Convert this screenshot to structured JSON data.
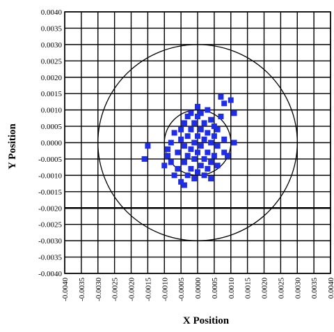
{
  "chart_data": {
    "type": "scatter",
    "title": "",
    "xlabel": "X Position",
    "ylabel": "Y Position",
    "xlim": [
      -0.004,
      0.004
    ],
    "ylim": [
      -0.004,
      0.004
    ],
    "x_ticks": [
      "-0.0040",
      "-0.0035",
      "-0.0030",
      "-0.0025",
      "-0.0020",
      "-0.0015",
      "-0.0010",
      "-0.0005",
      "0.0000",
      "0.0005",
      "0.0010",
      "0.0015",
      "0.0020",
      "0.0025",
      "0.0030",
      "0.0035",
      "0.0040"
    ],
    "y_ticks": [
      "0.0040",
      "0.0035",
      "0.0030",
      "0.0025",
      "0.0020",
      "0.0015",
      "0.0010",
      "0.0005",
      "0.0000",
      "-0.0005",
      "-0.0010",
      "-0.0015",
      "-0.0020",
      "-0.0025",
      "-0.0030",
      "-0.0035",
      "-0.0040"
    ],
    "grid": true,
    "marker_color": "#1f2ee6",
    "circles": [
      {
        "cx": 0.0,
        "cy": 0.0,
        "r": 0.003
      },
      {
        "cx": 0.0,
        "cy": 0.0,
        "r": 0.001
      }
    ],
    "series": [
      {
        "points": [
          [
            -0.0016,
            -0.0005
          ],
          [
            -0.0015,
            -0.0001
          ],
          [
            -0.001,
            -0.0007
          ],
          [
            -0.0009,
            -0.0004
          ],
          [
            -0.0009,
            -0.0002
          ],
          [
            -0.0008,
            0.0
          ],
          [
            -0.0008,
            -0.0006
          ],
          [
            -0.0007,
            -0.001
          ],
          [
            -0.0007,
            0.0003
          ],
          [
            -0.0006,
            -0.0008
          ],
          [
            -0.0006,
            -0.0003
          ],
          [
            -0.0005,
            -0.0012
          ],
          [
            -0.0005,
            0.0001
          ],
          [
            -0.0005,
            0.0004
          ],
          [
            -0.0004,
            -0.0013
          ],
          [
            -0.0004,
            -0.0006
          ],
          [
            -0.0004,
            -0.0001
          ],
          [
            -0.0004,
            0.0006
          ],
          [
            -0.0003,
            -0.001
          ],
          [
            -0.0003,
            -0.0004
          ],
          [
            -0.0003,
            0.0002
          ],
          [
            -0.0003,
            0.0008
          ],
          [
            -0.0002,
            -0.0008
          ],
          [
            -0.0002,
            -0.0002
          ],
          [
            -0.0002,
            0.0004
          ],
          [
            -0.0002,
            0.0009
          ],
          [
            -0.0001,
            -0.0011
          ],
          [
            -0.0001,
            -0.0005
          ],
          [
            -0.0001,
            0.0
          ],
          [
            -0.0001,
            0.0006
          ],
          [
            0.0,
            -0.0009
          ],
          [
            0.0,
            -0.0003
          ],
          [
            0.0,
            0.0002
          ],
          [
            0.0,
            0.0008
          ],
          [
            0.0,
            0.0011
          ],
          [
            0.0001,
            -0.0007
          ],
          [
            0.0001,
            -0.0001
          ],
          [
            0.0001,
            0.0004
          ],
          [
            0.0001,
            0.0009
          ],
          [
            0.0002,
            -0.001
          ],
          [
            0.0002,
            -0.0005
          ],
          [
            0.0002,
            0.0001
          ],
          [
            0.0002,
            0.0006
          ],
          [
            0.0003,
            -0.0008
          ],
          [
            0.0003,
            -0.0003
          ],
          [
            0.0003,
            0.0003
          ],
          [
            0.0003,
            0.001
          ],
          [
            0.0004,
            -0.0011
          ],
          [
            0.0004,
            -0.0006
          ],
          [
            0.0004,
            0.0
          ],
          [
            0.0004,
            0.0007
          ],
          [
            0.0005,
            -0.0004
          ],
          [
            0.0005,
            0.0002
          ],
          [
            0.0005,
            0.0005
          ],
          [
            0.0006,
            -0.0007
          ],
          [
            0.0006,
            -0.0001
          ],
          [
            0.0006,
            0.0004
          ],
          [
            0.0007,
            0.0014
          ],
          [
            0.0007,
            0.0008
          ],
          [
            0.0008,
            0.0012
          ],
          [
            0.0008,
            -0.0003
          ],
          [
            0.0008,
            0.0001
          ],
          [
            0.0009,
            -0.0004
          ],
          [
            0.001,
            0.0013
          ],
          [
            0.0011,
            0.0009
          ],
          [
            0.0011,
            0.0
          ]
        ]
      }
    ]
  }
}
